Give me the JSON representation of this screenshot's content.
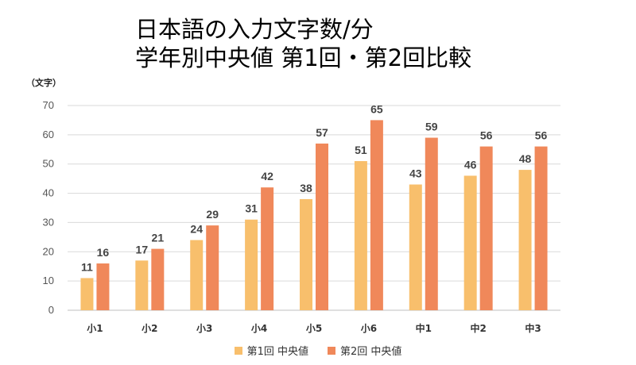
{
  "title_line1": "日本語の入力文字数/分",
  "title_line2": "学年別中央値 第1回・第2回比較",
  "unit_label": "（文字）",
  "colors": {
    "series1": "#F8BF6C",
    "series2": "#F0885A",
    "grid": "#d9d9d9",
    "axis": "#bfbfbf"
  },
  "chart_data": {
    "type": "bar",
    "categories": [
      "小1",
      "小2",
      "小3",
      "小4",
      "小5",
      "小6",
      "中1",
      "中2",
      "中3"
    ],
    "series": [
      {
        "name": "第1回 中央値",
        "values": [
          11,
          17,
          24,
          31,
          38,
          51,
          43,
          46,
          48
        ]
      },
      {
        "name": "第2回 中央値",
        "values": [
          16,
          21,
          29,
          42,
          57,
          65,
          59,
          56,
          56
        ]
      }
    ],
    "ylim": [
      0,
      70
    ],
    "yticks": [
      0,
      10,
      20,
      30,
      40,
      50,
      60,
      70
    ],
    "grid": true,
    "legend_position": "bottom"
  }
}
